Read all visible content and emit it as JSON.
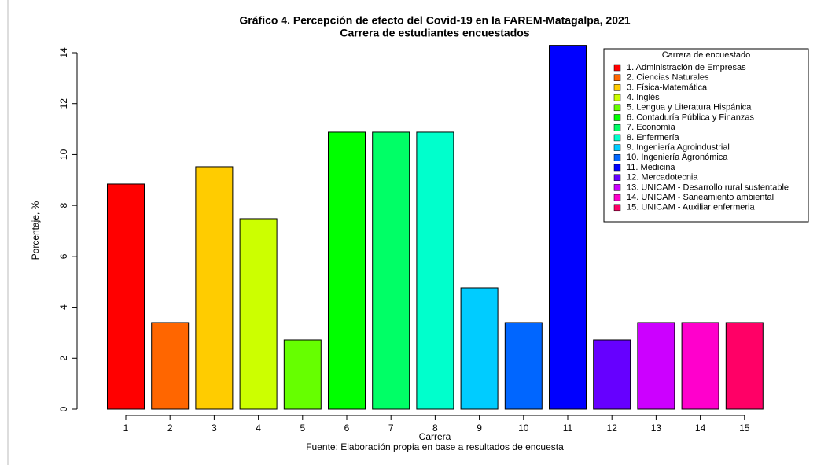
{
  "chart_data": {
    "type": "bar",
    "title": "Gráfico 4. Percepción de efecto del Covid-19 en la FAREM-Matagalpa, 2021",
    "subtitle": "Carrera de estudiantes encuestados",
    "x_label": "Carrera",
    "y_label": "Porcentaje, %",
    "source": "Fuente: Elaboración propia en base a resultados de encuesta",
    "legend_title": "Carrera de encuestado",
    "legend_position": "top-right",
    "categories": [
      "1",
      "2",
      "3",
      "4",
      "5",
      "6",
      "7",
      "8",
      "9",
      "10",
      "11",
      "12",
      "13",
      "14",
      "15"
    ],
    "legend_labels": [
      "1. Administración de Empresas",
      "2. Ciencias Naturales",
      "3. Física-Matemática",
      "4. Inglés",
      "5. Lengua y Literatura  Hispánica",
      "6. Contaduría Pública y Finanzas",
      "7. Economía",
      "8. Enfermería",
      "9. Ingeniería Agroindustrial",
      "10. Ingeniería Agronómica",
      "11. Medicina",
      "12. Mercadotecnia",
      "13. UNICAM - Desarrollo rural sustentable",
      "14. UNICAM - Saneamiento ambiental",
      "15. UNICAM - Auxiliar enfermeria"
    ],
    "values": [
      8.84,
      3.4,
      9.52,
      7.48,
      2.72,
      10.88,
      10.88,
      10.88,
      4.76,
      3.4,
      14.29,
      2.72,
      3.4,
      3.4,
      3.4
    ],
    "colors": [
      "#ff0000",
      "#ff6600",
      "#ffcc00",
      "#ccff00",
      "#66ff00",
      "#00ff00",
      "#00ff66",
      "#00ffcc",
      "#00ccff",
      "#0066ff",
      "#0000ff",
      "#6600ff",
      "#cc00ff",
      "#ff00cc",
      "#ff0066"
    ],
    "ylim": [
      0,
      14
    ],
    "yticks": [
      0,
      2,
      4,
      6,
      8,
      10,
      12,
      14
    ]
  }
}
